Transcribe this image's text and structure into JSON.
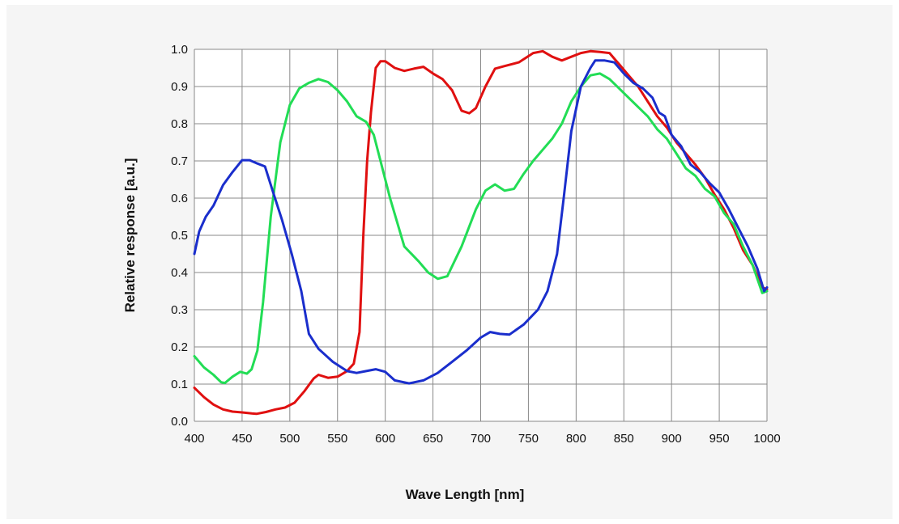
{
  "chart_data": {
    "type": "line",
    "title": "",
    "xlabel": "Wave Length [nm]",
    "ylabel": "Relative  response [a.u.]",
    "xlim": [
      400,
      1000
    ],
    "ylim": [
      0.0,
      1.0
    ],
    "x_ticks": [
      "400",
      "450",
      "500",
      "550",
      "600",
      "650",
      "700",
      "750",
      "800",
      "850",
      "900",
      "950",
      "1000"
    ],
    "y_ticks": [
      "0.0",
      "0.1",
      "0.2",
      "0.3",
      "0.4",
      "0.5",
      "0.6",
      "0.7",
      "0.8",
      "0.9",
      "1.0"
    ],
    "grid": true,
    "legend": "none",
    "series": [
      {
        "color": "#e01010",
        "points": [
          [
            400,
            0.09
          ],
          [
            410,
            0.065
          ],
          [
            420,
            0.045
          ],
          [
            430,
            0.032
          ],
          [
            440,
            0.026
          ],
          [
            450,
            0.024
          ],
          [
            460,
            0.021
          ],
          [
            465,
            0.02
          ],
          [
            475,
            0.025
          ],
          [
            485,
            0.032
          ],
          [
            495,
            0.037
          ],
          [
            505,
            0.05
          ],
          [
            515,
            0.08
          ],
          [
            525,
            0.115
          ],
          [
            530,
            0.125
          ],
          [
            540,
            0.117
          ],
          [
            550,
            0.12
          ],
          [
            560,
            0.135
          ],
          [
            567,
            0.155
          ],
          [
            573,
            0.24
          ],
          [
            577,
            0.5
          ],
          [
            581,
            0.7
          ],
          [
            585,
            0.83
          ],
          [
            590,
            0.95
          ],
          [
            595,
            0.968
          ],
          [
            600,
            0.968
          ],
          [
            610,
            0.95
          ],
          [
            620,
            0.942
          ],
          [
            630,
            0.948
          ],
          [
            640,
            0.953
          ],
          [
            650,
            0.935
          ],
          [
            660,
            0.92
          ],
          [
            670,
            0.89
          ],
          [
            680,
            0.835
          ],
          [
            688,
            0.828
          ],
          [
            695,
            0.842
          ],
          [
            705,
            0.9
          ],
          [
            715,
            0.948
          ],
          [
            725,
            0.955
          ],
          [
            740,
            0.965
          ],
          [
            755,
            0.99
          ],
          [
            765,
            0.995
          ],
          [
            775,
            0.98
          ],
          [
            785,
            0.97
          ],
          [
            795,
            0.98
          ],
          [
            805,
            0.99
          ],
          [
            815,
            0.995
          ],
          [
            825,
            0.993
          ],
          [
            835,
            0.99
          ],
          [
            845,
            0.96
          ],
          [
            855,
            0.93
          ],
          [
            865,
            0.9
          ],
          [
            875,
            0.86
          ],
          [
            885,
            0.82
          ],
          [
            895,
            0.79
          ],
          [
            905,
            0.75
          ],
          [
            915,
            0.72
          ],
          [
            925,
            0.69
          ],
          [
            935,
            0.655
          ],
          [
            945,
            0.61
          ],
          [
            955,
            0.57
          ],
          [
            965,
            0.52
          ],
          [
            975,
            0.46
          ],
          [
            985,
            0.42
          ],
          [
            995,
            0.36
          ],
          [
            1000,
            0.355
          ]
        ]
      },
      {
        "color": "#22dd55",
        "points": [
          [
            400,
            0.175
          ],
          [
            410,
            0.145
          ],
          [
            420,
            0.125
          ],
          [
            428,
            0.105
          ],
          [
            432,
            0.103
          ],
          [
            440,
            0.12
          ],
          [
            448,
            0.133
          ],
          [
            455,
            0.128
          ],
          [
            460,
            0.14
          ],
          [
            466,
            0.19
          ],
          [
            472,
            0.32
          ],
          [
            480,
            0.55
          ],
          [
            490,
            0.75
          ],
          [
            500,
            0.85
          ],
          [
            510,
            0.895
          ],
          [
            520,
            0.91
          ],
          [
            530,
            0.92
          ],
          [
            540,
            0.912
          ],
          [
            550,
            0.89
          ],
          [
            560,
            0.86
          ],
          [
            570,
            0.82
          ],
          [
            580,
            0.805
          ],
          [
            588,
            0.77
          ],
          [
            595,
            0.7
          ],
          [
            605,
            0.6
          ],
          [
            620,
            0.47
          ],
          [
            635,
            0.43
          ],
          [
            645,
            0.4
          ],
          [
            655,
            0.383
          ],
          [
            665,
            0.39
          ],
          [
            680,
            0.47
          ],
          [
            695,
            0.57
          ],
          [
            705,
            0.62
          ],
          [
            715,
            0.637
          ],
          [
            725,
            0.62
          ],
          [
            735,
            0.625
          ],
          [
            745,
            0.665
          ],
          [
            755,
            0.7
          ],
          [
            765,
            0.73
          ],
          [
            775,
            0.76
          ],
          [
            785,
            0.8
          ],
          [
            795,
            0.86
          ],
          [
            805,
            0.9
          ],
          [
            815,
            0.93
          ],
          [
            825,
            0.935
          ],
          [
            835,
            0.92
          ],
          [
            845,
            0.895
          ],
          [
            855,
            0.87
          ],
          [
            865,
            0.845
          ],
          [
            875,
            0.82
          ],
          [
            885,
            0.785
          ],
          [
            895,
            0.76
          ],
          [
            905,
            0.72
          ],
          [
            915,
            0.68
          ],
          [
            925,
            0.66
          ],
          [
            935,
            0.625
          ],
          [
            945,
            0.605
          ],
          [
            955,
            0.56
          ],
          [
            965,
            0.53
          ],
          [
            975,
            0.47
          ],
          [
            985,
            0.42
          ],
          [
            995,
            0.345
          ],
          [
            1000,
            0.35
          ]
        ]
      },
      {
        "color": "#1a2ecc",
        "points": [
          [
            400,
            0.45
          ],
          [
            405,
            0.51
          ],
          [
            412,
            0.55
          ],
          [
            420,
            0.58
          ],
          [
            430,
            0.635
          ],
          [
            440,
            0.67
          ],
          [
            450,
            0.702
          ],
          [
            458,
            0.702
          ],
          [
            466,
            0.693
          ],
          [
            474,
            0.685
          ],
          [
            482,
            0.62
          ],
          [
            492,
            0.54
          ],
          [
            502,
            0.45
          ],
          [
            512,
            0.35
          ],
          [
            520,
            0.235
          ],
          [
            530,
            0.195
          ],
          [
            545,
            0.16
          ],
          [
            560,
            0.135
          ],
          [
            570,
            0.13
          ],
          [
            580,
            0.135
          ],
          [
            590,
            0.14
          ],
          [
            600,
            0.133
          ],
          [
            610,
            0.11
          ],
          [
            625,
            0.102
          ],
          [
            640,
            0.11
          ],
          [
            655,
            0.13
          ],
          [
            670,
            0.16
          ],
          [
            685,
            0.19
          ],
          [
            700,
            0.225
          ],
          [
            710,
            0.24
          ],
          [
            720,
            0.235
          ],
          [
            730,
            0.233
          ],
          [
            745,
            0.26
          ],
          [
            760,
            0.3
          ],
          [
            770,
            0.35
          ],
          [
            780,
            0.45
          ],
          [
            787,
            0.6
          ],
          [
            795,
            0.78
          ],
          [
            805,
            0.9
          ],
          [
            815,
            0.95
          ],
          [
            820,
            0.97
          ],
          [
            830,
            0.97
          ],
          [
            840,
            0.965
          ],
          [
            850,
            0.935
          ],
          [
            860,
            0.91
          ],
          [
            870,
            0.895
          ],
          [
            880,
            0.87
          ],
          [
            887,
            0.83
          ],
          [
            893,
            0.82
          ],
          [
            900,
            0.77
          ],
          [
            910,
            0.74
          ],
          [
            920,
            0.69
          ],
          [
            930,
            0.67
          ],
          [
            940,
            0.64
          ],
          [
            950,
            0.615
          ],
          [
            960,
            0.57
          ],
          [
            970,
            0.52
          ],
          [
            980,
            0.47
          ],
          [
            990,
            0.41
          ],
          [
            997,
            0.35
          ],
          [
            1000,
            0.36
          ]
        ]
      }
    ]
  }
}
